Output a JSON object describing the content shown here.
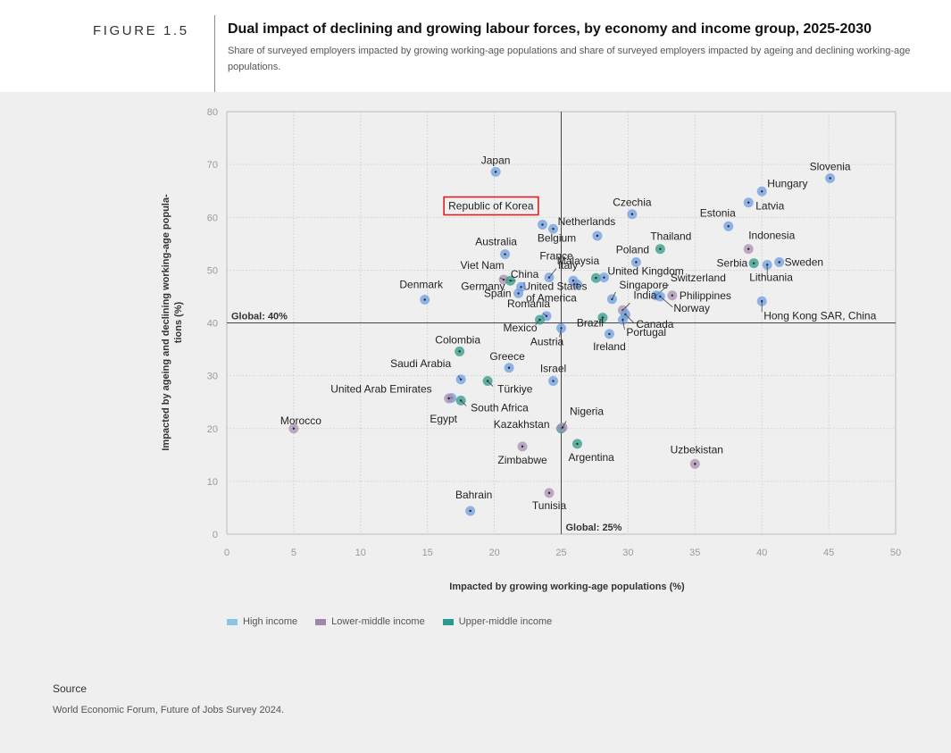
{
  "figure": {
    "label": "FIGURE 1.5",
    "title": "Dual impact of declining and growing labour forces, by economy and income group, 2025-2030",
    "subtitle": "Share of surveyed employers impacted by growing working-age populations and share of surveyed employers impacted by ageing and declining working-age populations."
  },
  "source": {
    "label": "Source",
    "text": "World Economic Forum, Future of Jobs Survey 2024."
  },
  "colors": {
    "high": "#6f9ee0",
    "lower_middle": "#a890b4",
    "upper_middle": "#2f9a8a",
    "highlight": "#e02020"
  },
  "chart_data": {
    "type": "scatter",
    "xlabel": "Impacted by growing working-age populations (%)",
    "ylabel": "Impacted by ageing and declining working-age populations (%)",
    "xlim": [
      0,
      50
    ],
    "ylim": [
      0,
      80
    ],
    "xticks": [
      0,
      5,
      10,
      15,
      20,
      25,
      30,
      35,
      40,
      45,
      50
    ],
    "yticks": [
      0,
      10,
      20,
      30,
      40,
      50,
      60,
      70,
      80
    ],
    "grid": true,
    "reference_lines": [
      {
        "axis": "y",
        "value": 40,
        "label": "Global: 40%"
      },
      {
        "axis": "x",
        "value": 25,
        "label": "Global: 25%"
      }
    ],
    "legend": [
      {
        "key": "high",
        "label": "High income"
      },
      {
        "key": "lower_middle",
        "label": "Lower-middle income"
      },
      {
        "key": "upper_middle",
        "label": "Upper-middle income"
      }
    ],
    "highlighted": "Republic of Korea",
    "points": [
      {
        "name": "Japan",
        "x": 20.1,
        "y": 68.6,
        "group": "high"
      },
      {
        "name": "Republic of Korea",
        "x": 23.6,
        "y": 58.6,
        "group": "high"
      },
      {
        "name": "Belgium",
        "x": 24.4,
        "y": 57.8,
        "group": "high"
      },
      {
        "name": "Czechia",
        "x": 30.3,
        "y": 60.6,
        "group": "high"
      },
      {
        "name": "Netherlands",
        "x": 27.7,
        "y": 56.5,
        "group": "high"
      },
      {
        "name": "Slovenia",
        "x": 45.1,
        "y": 67.4,
        "group": "high"
      },
      {
        "name": "Hungary",
        "x": 40.0,
        "y": 64.9,
        "group": "high"
      },
      {
        "name": "Latvia",
        "x": 39.0,
        "y": 62.8,
        "group": "high"
      },
      {
        "name": "Estonia",
        "x": 37.5,
        "y": 58.3,
        "group": "high"
      },
      {
        "name": "Thailand",
        "x": 32.4,
        "y": 54.0,
        "group": "upper_middle"
      },
      {
        "name": "Indonesia",
        "x": 39.0,
        "y": 54.0,
        "group": "lower_middle"
      },
      {
        "name": "Serbia",
        "x": 39.4,
        "y": 51.3,
        "group": "upper_middle"
      },
      {
        "name": "Sweden",
        "x": 41.3,
        "y": 51.5,
        "group": "high"
      },
      {
        "name": "Lithuania",
        "x": 40.4,
        "y": 51.0,
        "group": "high"
      },
      {
        "name": "Australia",
        "x": 20.8,
        "y": 53.0,
        "group": "high"
      },
      {
        "name": "Poland",
        "x": 30.6,
        "y": 51.5,
        "group": "high"
      },
      {
        "name": "France",
        "x": 24.1,
        "y": 48.6,
        "group": "high"
      },
      {
        "name": "Malaysia",
        "x": 27.6,
        "y": 48.5,
        "group": "upper_middle"
      },
      {
        "name": "United Kingdom",
        "x": 28.2,
        "y": 48.6,
        "group": "high"
      },
      {
        "name": "Italy",
        "x": 25.9,
        "y": 48.0,
        "group": "high"
      },
      {
        "name": "United States of America",
        "x": 26.2,
        "y": 47.3,
        "group": "high"
      },
      {
        "name": "Singapore",
        "x": 28.8,
        "y": 44.5,
        "group": "high"
      },
      {
        "name": "Switzerland",
        "x": 32.1,
        "y": 45.2,
        "group": "high"
      },
      {
        "name": "Philippines",
        "x": 33.3,
        "y": 45.2,
        "group": "lower_middle"
      },
      {
        "name": "Norway",
        "x": 32.4,
        "y": 45.0,
        "group": "high"
      },
      {
        "name": "Viet Nam",
        "x": 20.7,
        "y": 48.2,
        "group": "lower_middle"
      },
      {
        "name": "China",
        "x": 21.2,
        "y": 48.0,
        "group": "upper_middle"
      },
      {
        "name": "Germany",
        "x": 22.0,
        "y": 46.8,
        "group": "high"
      },
      {
        "name": "Spain",
        "x": 21.8,
        "y": 45.6,
        "group": "high"
      },
      {
        "name": "Denmark",
        "x": 14.8,
        "y": 44.4,
        "group": "high"
      },
      {
        "name": "India",
        "x": 29.6,
        "y": 42.4,
        "group": "lower_middle"
      },
      {
        "name": "Canada",
        "x": 29.8,
        "y": 41.6,
        "group": "high"
      },
      {
        "name": "Hong Kong SAR, China",
        "x": 40.0,
        "y": 44.1,
        "group": "high"
      },
      {
        "name": "Romania",
        "x": 23.9,
        "y": 41.3,
        "group": "high"
      },
      {
        "name": "Mexico",
        "x": 23.4,
        "y": 40.6,
        "group": "upper_middle"
      },
      {
        "name": "Brazil",
        "x": 28.1,
        "y": 41.0,
        "group": "upper_middle"
      },
      {
        "name": "Portugal",
        "x": 29.6,
        "y": 40.6,
        "group": "high"
      },
      {
        "name": "Austria",
        "x": 25.0,
        "y": 39.0,
        "group": "high"
      },
      {
        "name": "Ireland",
        "x": 28.6,
        "y": 37.9,
        "group": "high"
      },
      {
        "name": "Colombia",
        "x": 17.4,
        "y": 34.6,
        "group": "upper_middle"
      },
      {
        "name": "Greece",
        "x": 21.1,
        "y": 31.5,
        "group": "high"
      },
      {
        "name": "Saudi Arabia",
        "x": 17.5,
        "y": 29.3,
        "group": "high"
      },
      {
        "name": "Türkiye",
        "x": 19.5,
        "y": 29.0,
        "group": "upper_middle"
      },
      {
        "name": "Israel",
        "x": 24.4,
        "y": 29.0,
        "group": "high"
      },
      {
        "name": "United Arab Emirates",
        "x": 16.8,
        "y": 25.8,
        "group": "high"
      },
      {
        "name": "Egypt",
        "x": 16.6,
        "y": 25.7,
        "group": "lower_middle"
      },
      {
        "name": "South Africa",
        "x": 17.5,
        "y": 25.3,
        "group": "upper_middle"
      },
      {
        "name": "Kazakhstan",
        "x": 25.0,
        "y": 20.0,
        "group": "upper_middle"
      },
      {
        "name": "Nigeria",
        "x": 25.1,
        "y": 20.2,
        "group": "lower_middle"
      },
      {
        "name": "Morocco",
        "x": 5.0,
        "y": 20.0,
        "group": "lower_middle"
      },
      {
        "name": "Zimbabwe",
        "x": 22.1,
        "y": 16.6,
        "group": "lower_middle"
      },
      {
        "name": "Argentina",
        "x": 26.2,
        "y": 17.1,
        "group": "upper_middle"
      },
      {
        "name": "Uzbekistan",
        "x": 35.0,
        "y": 13.3,
        "group": "lower_middle"
      },
      {
        "name": "Bahrain",
        "x": 18.2,
        "y": 4.4,
        "group": "high"
      },
      {
        "name": "Tunisia",
        "x": 24.1,
        "y": 7.8,
        "group": "lower_middle"
      }
    ]
  }
}
